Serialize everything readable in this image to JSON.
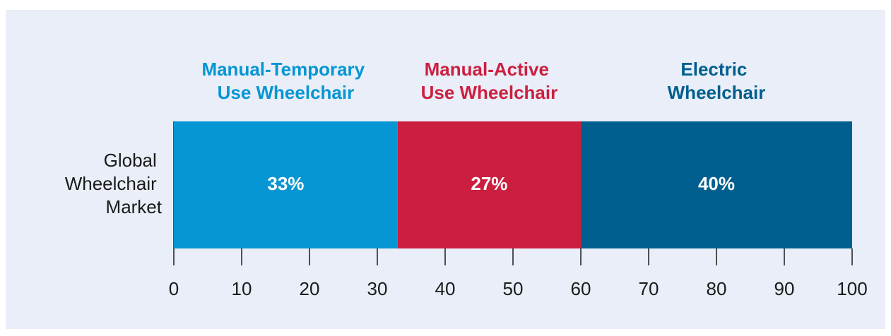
{
  "chart_data": {
    "type": "stacked_bar_horizontal",
    "categories": [
      "Global Wheelchair Market"
    ],
    "series": [
      {
        "name": "Manual-Temporary Use Wheelchair",
        "color": "#0696d3",
        "values": [
          33
        ],
        "value_labels": [
          "33%"
        ]
      },
      {
        "name": "Manual-Active Use Wheelchair",
        "color": "#cc1f40",
        "values": [
          27
        ],
        "value_labels": [
          "27%"
        ]
      },
      {
        "name": "Electric Wheelchair",
        "color": "#005f8e",
        "values": [
          40
        ],
        "value_labels": [
          "40%"
        ]
      }
    ],
    "xlim": [
      0,
      100
    ],
    "xticks": [
      0,
      10,
      20,
      30,
      40,
      50,
      60,
      70,
      80,
      90,
      100
    ]
  }
}
